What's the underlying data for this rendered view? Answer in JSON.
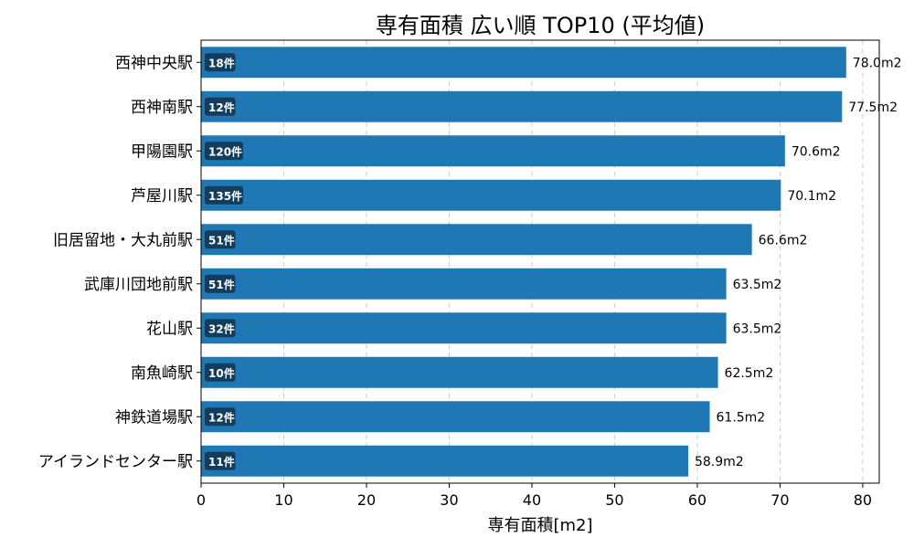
{
  "chart_data": {
    "type": "bar",
    "orientation": "horizontal",
    "title": "専有面積 広い順 TOP10 (平均値)",
    "xlabel": "専有面積[m2]",
    "ylabel": "",
    "xlim": [
      0,
      82
    ],
    "xticks": [
      0,
      10,
      20,
      30,
      40,
      50,
      60,
      70,
      80
    ],
    "grid": "x dashed",
    "categories": [
      "西神中央駅",
      "西神南駅",
      "甲陽園駅",
      "芦屋川駅",
      "旧居留地・大丸前駅",
      "武庫川団地前駅",
      "花山駅",
      "南魚崎駅",
      "神鉄道場駅",
      "アイランドセンター駅"
    ],
    "values": [
      78.0,
      77.5,
      70.6,
      70.1,
      66.6,
      63.5,
      63.5,
      62.5,
      61.5,
      58.9
    ],
    "value_labels": [
      "78.0m2",
      "77.5m2",
      "70.6m2",
      "70.1m2",
      "66.6m2",
      "63.5m2",
      "63.5m2",
      "62.5m2",
      "61.5m2",
      "58.9m2"
    ],
    "counts": [
      "18件",
      "12件",
      "120件",
      "135件",
      "51件",
      "51件",
      "32件",
      "10件",
      "12件",
      "11件"
    ],
    "bar_color": "#1f77b4",
    "badge_color": "#143c5c",
    "grid_color": "#cccccc"
  }
}
